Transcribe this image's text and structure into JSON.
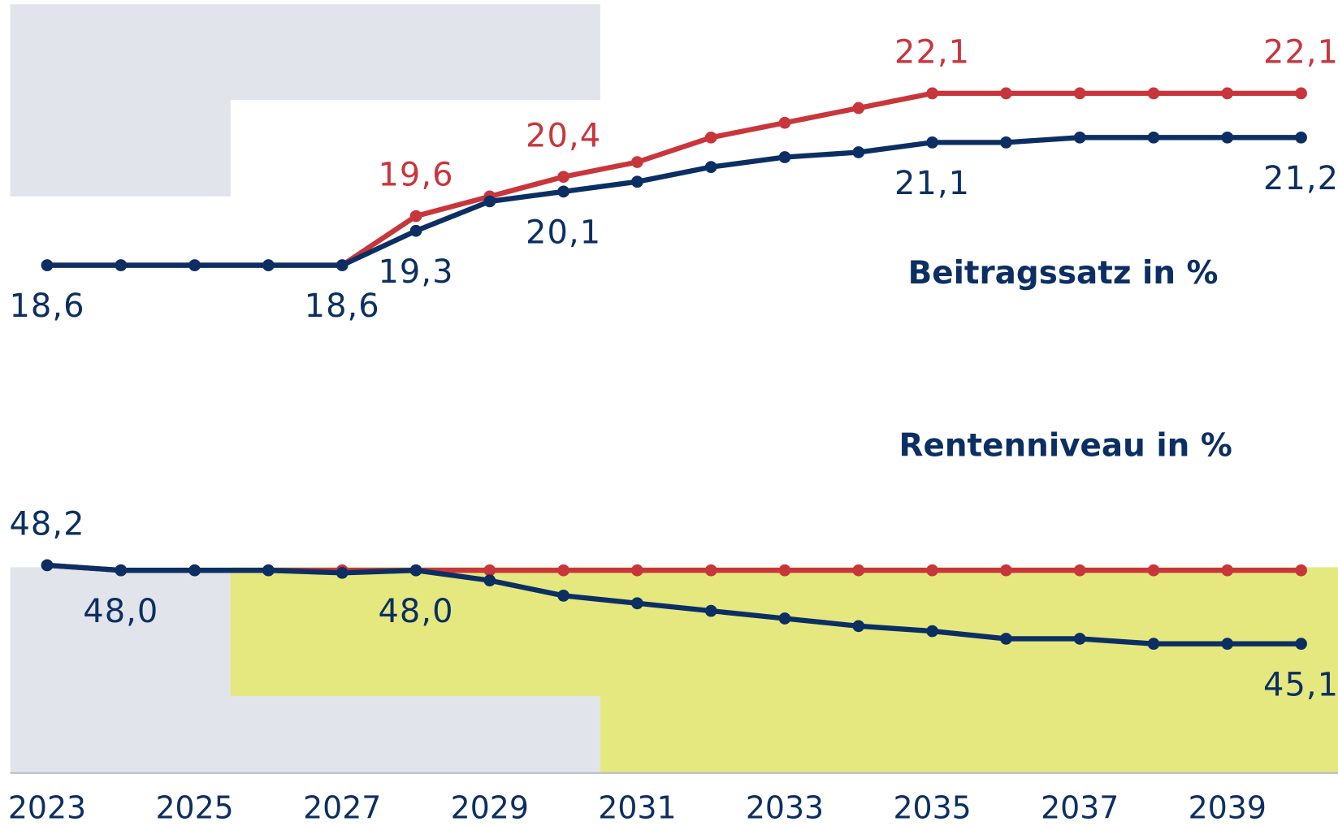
{
  "chart_data": [
    {
      "type": "line",
      "title": "Beitragssatz in %",
      "x": [
        2023,
        2024,
        2025,
        2026,
        2027,
        2028,
        2029,
        2030,
        2031,
        2032,
        2033,
        2034,
        2035,
        2036,
        2037,
        2038,
        2039,
        2040
      ],
      "xlim": [
        2022.5,
        2040.5
      ],
      "ylim": [
        16,
        24
      ],
      "series": [
        {
          "color": "#c8363c",
          "values": [
            18.6,
            18.6,
            18.6,
            18.6,
            18.6,
            19.6,
            20.0,
            20.4,
            20.7,
            21.2,
            21.5,
            21.8,
            22.1,
            22.1,
            22.1,
            22.1,
            22.1,
            22.1
          ],
          "value_labels": [
            null,
            null,
            null,
            null,
            null,
            "19,6",
            null,
            "20,4",
            null,
            null,
            null,
            null,
            "22,1",
            null,
            null,
            null,
            null,
            "22,1"
          ]
        },
        {
          "color": "#0c2f63",
          "values": [
            18.6,
            18.6,
            18.6,
            18.6,
            18.6,
            19.3,
            19.9,
            20.1,
            20.3,
            20.6,
            20.8,
            20.9,
            21.1,
            21.1,
            21.2,
            21.2,
            21.2,
            21.2
          ],
          "value_labels": [
            "18,6",
            null,
            null,
            null,
            "18,6",
            "19,3",
            null,
            "20,1",
            null,
            null,
            null,
            null,
            "21,1",
            null,
            null,
            null,
            null,
            "21,2"
          ]
        }
      ]
    },
    {
      "type": "line",
      "title": "Rentenniveau in %",
      "x": [
        2023,
        2024,
        2025,
        2026,
        2027,
        2028,
        2029,
        2030,
        2031,
        2032,
        2033,
        2034,
        2035,
        2036,
        2037,
        2038,
        2039,
        2040
      ],
      "xlim": [
        2022.5,
        2040.5
      ],
      "ylim": [
        40,
        55
      ],
      "xticks": [
        2023,
        2025,
        2027,
        2029,
        2031,
        2033,
        2035,
        2037,
        2039
      ],
      "series": [
        {
          "color": "#c8363c",
          "values": [
            48.2,
            48.0,
            48.0,
            48.0,
            48.0,
            48.0,
            48.0,
            48.0,
            48.0,
            48.0,
            48.0,
            48.0,
            48.0,
            48.0,
            48.0,
            48.0,
            48.0,
            48.0
          ],
          "value_labels": [
            null,
            null,
            null,
            null,
            null,
            null,
            null,
            null,
            null,
            null,
            null,
            null,
            null,
            null,
            null,
            null,
            null,
            null
          ]
        },
        {
          "color": "#0c2f63",
          "values": [
            48.2,
            48.0,
            48.0,
            48.0,
            47.9,
            48.0,
            47.6,
            47.0,
            46.7,
            46.4,
            46.1,
            45.8,
            45.6,
            45.3,
            45.3,
            45.1,
            45.1,
            45.1
          ],
          "value_labels": [
            "48,2",
            "48,0",
            null,
            null,
            null,
            "48,0",
            null,
            null,
            null,
            null,
            null,
            null,
            null,
            null,
            null,
            null,
            null,
            "45,1"
          ]
        }
      ]
    }
  ]
}
